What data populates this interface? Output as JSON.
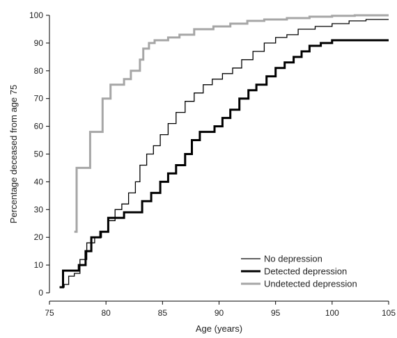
{
  "chart_data": {
    "type": "line",
    "title": "",
    "xlabel": "Age (years)",
    "ylabel": "Percentage deceased from age 75",
    "xlim": [
      75,
      105
    ],
    "ylim": [
      0,
      100
    ],
    "x_ticks": [
      75,
      80,
      85,
      90,
      95,
      100,
      105
    ],
    "y_ticks": [
      0,
      10,
      20,
      30,
      40,
      50,
      60,
      70,
      80,
      90,
      100
    ],
    "grid": false,
    "legend_position": "bottom-right",
    "series": [
      {
        "name": "No depression",
        "color": "#000000",
        "style": "thin",
        "points": [
          [
            75.9,
            2
          ],
          [
            76.3,
            3
          ],
          [
            76.7,
            6
          ],
          [
            77.2,
            7
          ],
          [
            77.7,
            12
          ],
          [
            78.3,
            18
          ],
          [
            79.0,
            20
          ],
          [
            79.6,
            22
          ],
          [
            80.2,
            26
          ],
          [
            80.8,
            30
          ],
          [
            81.4,
            32
          ],
          [
            82.0,
            36
          ],
          [
            82.6,
            40
          ],
          [
            83.0,
            46
          ],
          [
            83.6,
            50
          ],
          [
            84.2,
            53
          ],
          [
            84.8,
            57
          ],
          [
            85.5,
            61
          ],
          [
            86.2,
            65
          ],
          [
            87.0,
            69
          ],
          [
            87.8,
            72
          ],
          [
            88.6,
            75
          ],
          [
            89.4,
            77
          ],
          [
            90.3,
            79
          ],
          [
            91.2,
            81
          ],
          [
            92.0,
            84
          ],
          [
            93.0,
            87
          ],
          [
            94.0,
            90
          ],
          [
            95.0,
            92
          ],
          [
            96.0,
            93
          ],
          [
            97.0,
            95
          ],
          [
            98.5,
            96
          ],
          [
            100.0,
            97
          ],
          [
            101.5,
            98
          ],
          [
            103.0,
            98.5
          ],
          [
            105.0,
            98.5
          ]
        ]
      },
      {
        "name": "Detected depression",
        "color": "#000000",
        "style": "thick",
        "points": [
          [
            75.9,
            2
          ],
          [
            76.2,
            8
          ],
          [
            77.3,
            8
          ],
          [
            77.6,
            10
          ],
          [
            78.2,
            15
          ],
          [
            78.7,
            20
          ],
          [
            79.5,
            22
          ],
          [
            80.0,
            22
          ],
          [
            80.2,
            27
          ],
          [
            81.5,
            27
          ],
          [
            81.6,
            29
          ],
          [
            83.0,
            29
          ],
          [
            83.2,
            33
          ],
          [
            84.0,
            36
          ],
          [
            84.8,
            40
          ],
          [
            85.5,
            43
          ],
          [
            86.2,
            46
          ],
          [
            87.0,
            50
          ],
          [
            87.6,
            55
          ],
          [
            88.3,
            58
          ],
          [
            89.0,
            58
          ],
          [
            89.6,
            60
          ],
          [
            90.3,
            63
          ],
          [
            91.0,
            66
          ],
          [
            91.8,
            70
          ],
          [
            92.6,
            73
          ],
          [
            93.3,
            75
          ],
          [
            94.2,
            78
          ],
          [
            95.0,
            81
          ],
          [
            95.8,
            83
          ],
          [
            96.6,
            85
          ],
          [
            97.3,
            87
          ],
          [
            98.0,
            89
          ],
          [
            99.0,
            90
          ],
          [
            100.0,
            91
          ],
          [
            101.0,
            91
          ],
          [
            105.0,
            91
          ]
        ]
      },
      {
        "name": "Undetected depression",
        "color": "#a6a6a6",
        "style": "thick",
        "points": [
          [
            77.2,
            22
          ],
          [
            77.2,
            22
          ],
          [
            77.4,
            45
          ],
          [
            78.6,
            45
          ],
          [
            78.6,
            58
          ],
          [
            79.7,
            58
          ],
          [
            79.7,
            70
          ],
          [
            80.4,
            70
          ],
          [
            80.4,
            75
          ],
          [
            81.6,
            75
          ],
          [
            81.6,
            77
          ],
          [
            82.2,
            77
          ],
          [
            82.2,
            80
          ],
          [
            82.8,
            80
          ],
          [
            83.0,
            84
          ],
          [
            83.3,
            88
          ],
          [
            83.8,
            90
          ],
          [
            84.3,
            91
          ],
          [
            85.5,
            92
          ],
          [
            86.5,
            93
          ],
          [
            87.8,
            95
          ],
          [
            89.5,
            96
          ],
          [
            91.0,
            97
          ],
          [
            92.5,
            98
          ],
          [
            94.0,
            98.5
          ],
          [
            96.0,
            99
          ],
          [
            98.0,
            99.5
          ],
          [
            100.0,
            99.8
          ],
          [
            102.0,
            100
          ],
          [
            105.0,
            100
          ]
        ]
      }
    ]
  }
}
